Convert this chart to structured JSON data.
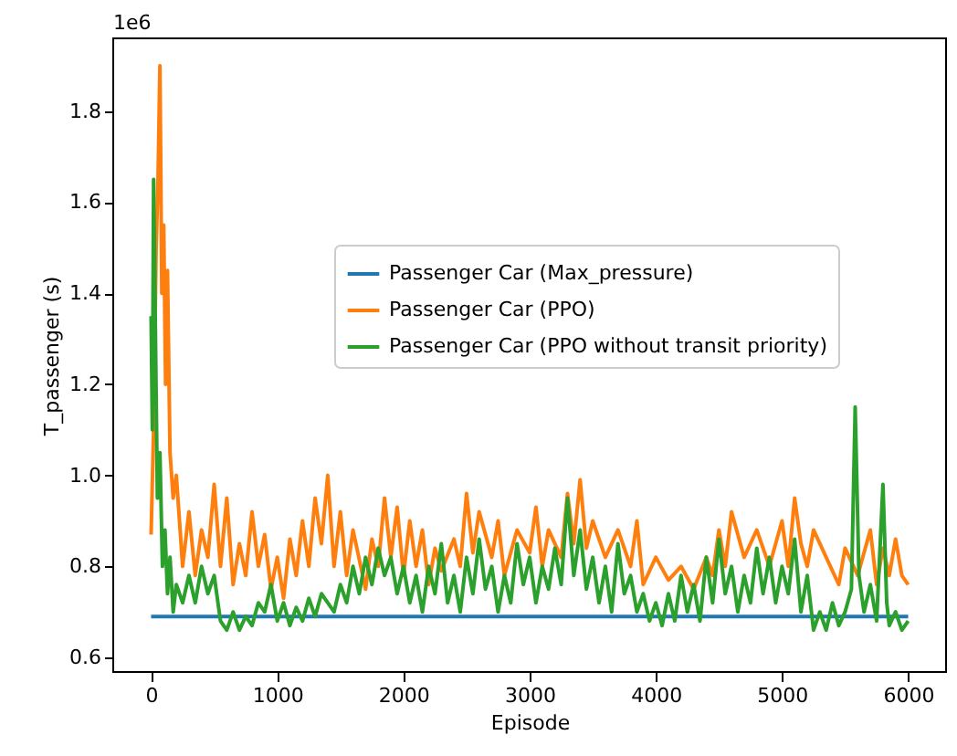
{
  "chart_data": {
    "type": "line",
    "xlabel": "Episode",
    "ylabel": "T_passenger (s)",
    "annotations": [
      "1e6"
    ],
    "xlim": [
      -300,
      6300
    ],
    "xticks": [
      0,
      1000,
      2000,
      3000,
      4000,
      5000,
      6000
    ],
    "ylim": [
      0.568,
      1.96
    ],
    "yticks": [
      0.6,
      0.8,
      {
        "value": 1,
        "label": "1.0"
      },
      1.2,
      1.4,
      1.6,
      1.8
    ],
    "grid": false,
    "legend": "right",
    "marker": "none",
    "line_style": "solid",
    "series": [
      {
        "name": "Passenger Car (Max_pressure)",
        "color": "#1f77b4",
        "x": [
          0,
          6000
        ],
        "values": [
          0.69,
          0.69
        ]
      },
      {
        "name": "Passenger Car (PPO)",
        "color": "#ff7f0e",
        "x": [
          0,
          20,
          40,
          55,
          70,
          85,
          100,
          115,
          130,
          150,
          175,
          200,
          250,
          300,
          350,
          400,
          450,
          500,
          550,
          600,
          650,
          700,
          750,
          800,
          850,
          900,
          950,
          1000,
          1050,
          1100,
          1150,
          1200,
          1250,
          1300,
          1350,
          1400,
          1450,
          1500,
          1550,
          1600,
          1700,
          1750,
          1800,
          1850,
          1900,
          1950,
          2000,
          2050,
          2100,
          2150,
          2200,
          2250,
          2300,
          2400,
          2450,
          2500,
          2550,
          2600,
          2700,
          2750,
          2800,
          2900,
          3000,
          3050,
          3100,
          3150,
          3250,
          3300,
          3350,
          3400,
          3450,
          3500,
          3600,
          3700,
          3800,
          3850,
          3900,
          4000,
          4100,
          4200,
          4300,
          4400,
          4450,
          4500,
          4550,
          4600,
          4700,
          4800,
          4900,
          5000,
          5050,
          5100,
          5150,
          5200,
          5250,
          5350,
          5450,
          5500,
          5600,
          5700,
          5750,
          5800,
          5850,
          5900,
          5950,
          6000
        ],
        "values": [
          0.87,
          1.1,
          1.5,
          1.65,
          1.9,
          1.4,
          1.55,
          1.2,
          1.45,
          1.05,
          0.95,
          1.0,
          0.8,
          0.92,
          0.78,
          0.88,
          0.82,
          0.98,
          0.8,
          0.95,
          0.76,
          0.85,
          0.78,
          0.92,
          0.8,
          0.87,
          0.75,
          0.82,
          0.73,
          0.86,
          0.78,
          0.9,
          0.8,
          0.95,
          0.85,
          1.0,
          0.8,
          0.92,
          0.78,
          0.88,
          0.75,
          0.86,
          0.8,
          0.95,
          0.82,
          0.93,
          0.78,
          0.9,
          0.8,
          0.88,
          0.76,
          0.84,
          0.79,
          0.86,
          0.8,
          0.96,
          0.83,
          0.92,
          0.82,
          0.9,
          0.78,
          0.88,
          0.83,
          0.93,
          0.8,
          0.88,
          0.82,
          0.96,
          0.85,
          0.99,
          0.84,
          0.9,
          0.82,
          0.88,
          0.8,
          0.9,
          0.76,
          0.82,
          0.77,
          0.8,
          0.75,
          0.82,
          0.78,
          0.88,
          0.8,
          0.92,
          0.82,
          0.88,
          0.8,
          0.9,
          0.8,
          0.95,
          0.85,
          0.8,
          0.88,
          0.82,
          0.76,
          0.84,
          0.78,
          0.88,
          0.76,
          0.84,
          0.78,
          0.86,
          0.78,
          0.76
        ]
      },
      {
        "name": "Passenger Car (PPO without transit priority)",
        "color": "#2ca02c",
        "x": [
          0,
          10,
          20,
          35,
          50,
          70,
          90,
          110,
          130,
          150,
          175,
          200,
          250,
          300,
          350,
          400,
          450,
          500,
          550,
          600,
          650,
          700,
          750,
          800,
          850,
          900,
          950,
          1000,
          1050,
          1100,
          1150,
          1200,
          1250,
          1300,
          1350,
          1400,
          1450,
          1500,
          1550,
          1600,
          1650,
          1700,
          1750,
          1800,
          1850,
          1900,
          1950,
          2000,
          2050,
          2100,
          2150,
          2200,
          2250,
          2300,
          2350,
          2400,
          2450,
          2500,
          2550,
          2600,
          2650,
          2700,
          2750,
          2800,
          2850,
          2900,
          2950,
          3000,
          3050,
          3100,
          3150,
          3200,
          3250,
          3300,
          3350,
          3400,
          3450,
          3500,
          3550,
          3600,
          3650,
          3700,
          3750,
          3800,
          3850,
          3900,
          3950,
          4000,
          4050,
          4100,
          4150,
          4200,
          4250,
          4300,
          4350,
          4400,
          4450,
          4500,
          4550,
          4600,
          4650,
          4700,
          4750,
          4800,
          4850,
          4900,
          4950,
          5000,
          5050,
          5100,
          5150,
          5200,
          5250,
          5300,
          5350,
          5400,
          5450,
          5500,
          5550,
          5580,
          5610,
          5650,
          5700,
          5750,
          5800,
          5830,
          5850,
          5900,
          5950,
          6000
        ],
        "values": [
          1.35,
          1.1,
          1.65,
          1.3,
          0.95,
          1.05,
          0.8,
          0.88,
          0.74,
          0.82,
          0.7,
          0.76,
          0.72,
          0.78,
          0.72,
          0.8,
          0.74,
          0.78,
          0.68,
          0.66,
          0.7,
          0.66,
          0.69,
          0.67,
          0.72,
          0.7,
          0.76,
          0.68,
          0.72,
          0.67,
          0.71,
          0.68,
          0.73,
          0.69,
          0.74,
          0.72,
          0.7,
          0.76,
          0.72,
          0.8,
          0.74,
          0.82,
          0.76,
          0.84,
          0.78,
          0.82,
          0.74,
          0.8,
          0.72,
          0.78,
          0.7,
          0.8,
          0.74,
          0.85,
          0.72,
          0.78,
          0.7,
          0.82,
          0.74,
          0.86,
          0.75,
          0.8,
          0.7,
          0.78,
          0.72,
          0.85,
          0.76,
          0.82,
          0.72,
          0.8,
          0.75,
          0.84,
          0.76,
          0.95,
          0.78,
          0.88,
          0.75,
          0.82,
          0.72,
          0.8,
          0.7,
          0.85,
          0.74,
          0.78,
          0.7,
          0.74,
          0.68,
          0.72,
          0.67,
          0.74,
          0.68,
          0.78,
          0.7,
          0.76,
          0.68,
          0.82,
          0.72,
          0.86,
          0.74,
          0.8,
          0.7,
          0.78,
          0.72,
          0.84,
          0.74,
          0.82,
          0.72,
          0.8,
          0.74,
          0.86,
          0.7,
          0.78,
          0.66,
          0.7,
          0.66,
          0.72,
          0.67,
          0.7,
          0.75,
          1.15,
          0.78,
          0.7,
          0.76,
          0.68,
          0.98,
          0.72,
          0.67,
          0.7,
          0.66,
          0.68
        ]
      }
    ]
  }
}
